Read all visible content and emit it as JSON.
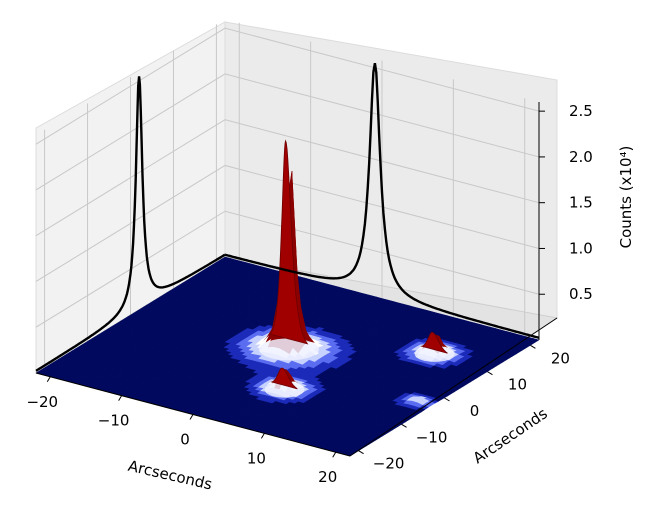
{
  "chart_data": {
    "type": "surface3d",
    "title": "",
    "xlabel": "Arcseconds",
    "ylabel": "Arcseconds",
    "zlabel": "Counts (x10⁴)",
    "xlim": [
      -22,
      22
    ],
    "ylim": [
      -22,
      22
    ],
    "zlim": [
      0,
      2.6
    ],
    "x_ticks": [
      "−20",
      "−10",
      "0",
      "10",
      "20"
    ],
    "y_ticks": [
      "−20",
      "−10",
      "0",
      "10",
      "20"
    ],
    "z_ticks": [
      "0.5",
      "1.0",
      "1.5",
      "2.0",
      "2.5"
    ],
    "grid": true,
    "colormap": {
      "low": "#000a66",
      "mid": "#e8ecff",
      "high": "#8b0000"
    },
    "sources": [
      {
        "x": -1.0,
        "y": 2.0,
        "peak": 2.3
      },
      {
        "x": 14.0,
        "y": 11.0,
        "peak": 0.25
      },
      {
        "x": 5.0,
        "y": -9.0,
        "peak": 0.25
      },
      {
        "x": 20.0,
        "y": -3.0,
        "peak": 0.05
      }
    ],
    "projection_xz": {
      "peak": 2.55
    },
    "projection_yz": {
      "peak": 2.55
    }
  }
}
